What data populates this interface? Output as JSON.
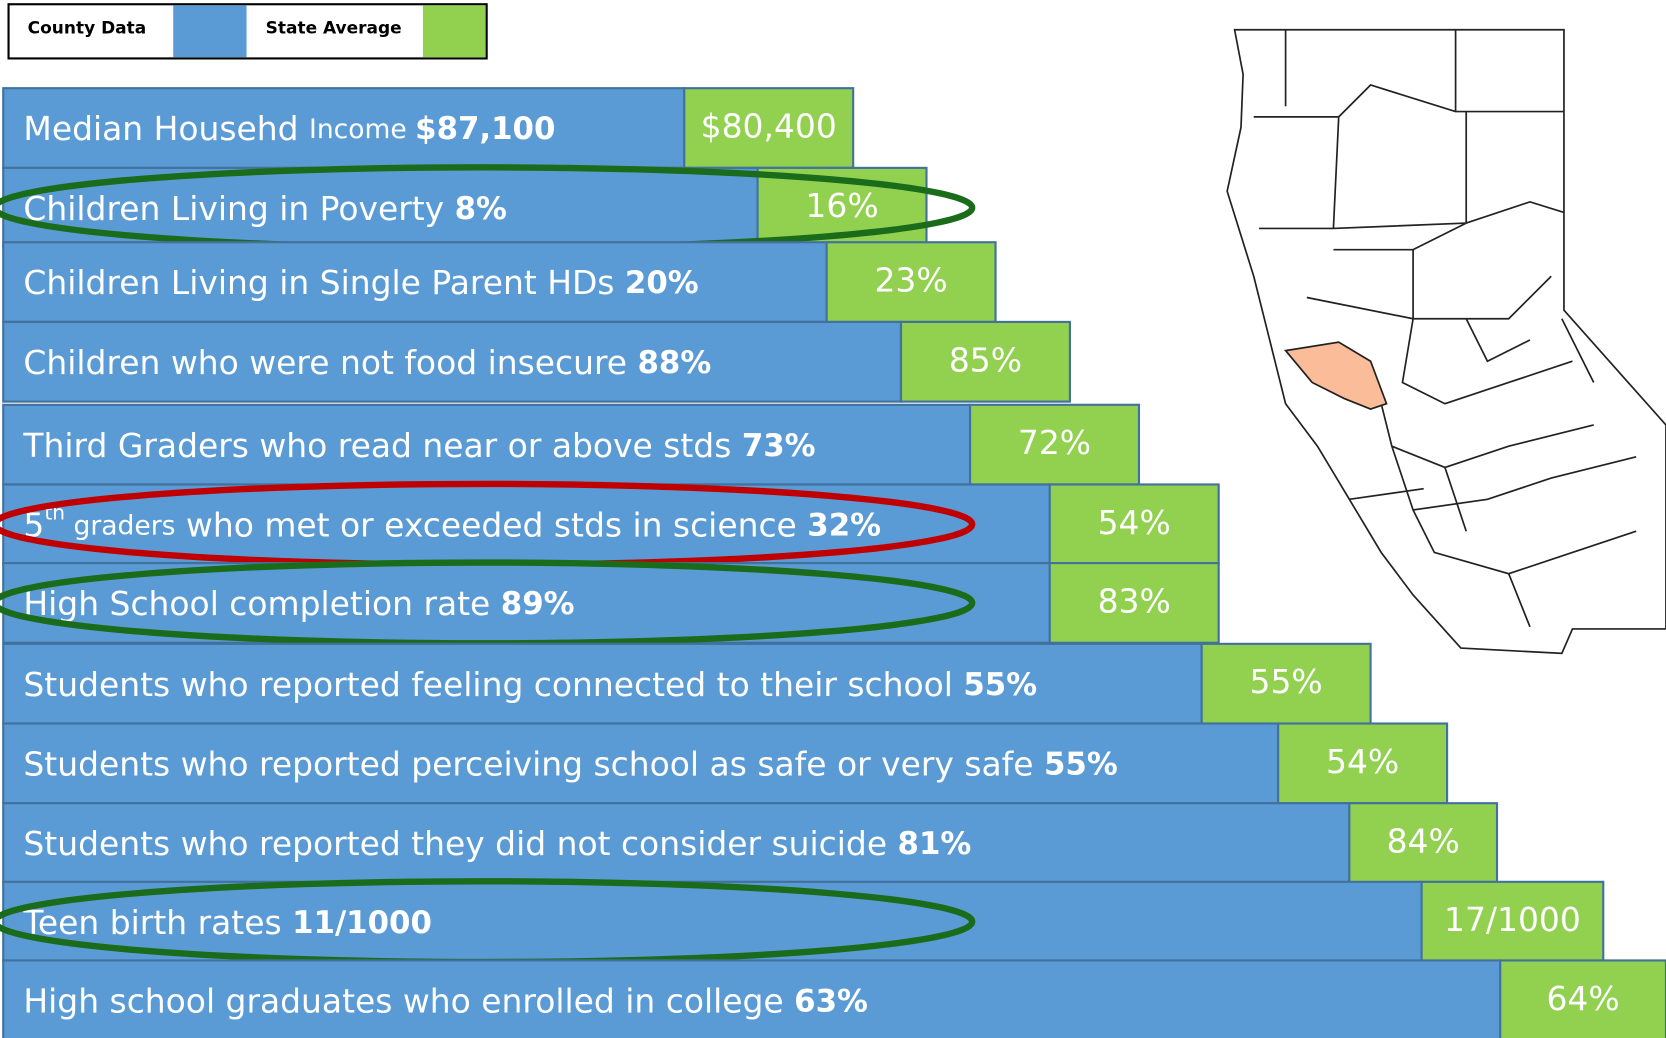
{
  "legend": {
    "county": "County Data",
    "county_color": "#5b9bd5",
    "state": "State Average",
    "state_color": "#92d050"
  },
  "rows": [
    {
      "label": [
        "Median Househd ",
        {
          "text": "Income ",
          "size": "small"
        },
        {
          "text": "$87,100",
          "size": "bold"
        }
      ],
      "state": "$80,400"
    },
    {
      "label": [
        "Children Living in Poverty ",
        {
          "text": "8%",
          "size": "bold"
        }
      ],
      "state": "16%",
      "highlight": "#1a6b1a"
    },
    {
      "label": [
        "Children Living in Single Parent HDs ",
        {
          "text": "20%",
          "size": "bold"
        }
      ],
      "state": "23%"
    },
    {
      "label": [
        "Children who were not food insecure ",
        {
          "text": "88%",
          "size": "bold"
        }
      ],
      "state": "85%"
    },
    {
      "label": [
        "Third Graders who read near or above stds  ",
        {
          "text": "73%",
          "size": "bold"
        }
      ],
      "state": "72%"
    },
    {
      "label": [
        "5",
        {
          "text": "th",
          "size": "sup"
        },
        {
          "text": " graders",
          "size": "small"
        },
        " who met or exceeded stds in science ",
        {
          "text": "32%",
          "size": "bold"
        }
      ],
      "state": "54%",
      "highlight": "#c00000"
    },
    {
      "label": [
        "High School completion rate  ",
        {
          "text": "89%",
          "size": "bold"
        }
      ],
      "state": "83%",
      "highlight": "#1a6b1a"
    },
    {
      "label": [
        "Students who reported feeling connected to their school ",
        {
          "text": "55%",
          "size": "bold"
        }
      ],
      "state": "55%"
    },
    {
      "label": [
        "Students who reported perceiving school as safe or very safe ",
        {
          "text": "55%",
          "size": "bold"
        }
      ],
      "state": "54%"
    },
    {
      "label": [
        "Students who reported they did not consider suicide ",
        {
          "text": "81%",
          "size": "bold"
        }
      ],
      "state": "84%"
    },
    {
      "label": [
        "Teen birth rates  ",
        {
          "text": "11/1000",
          "size": "bold"
        }
      ],
      "state": "17/1000",
      "highlight": "#1a6b1a"
    },
    {
      "label": [
        "High school graduates who enrolled in college ",
        {
          "text": "63%",
          "size": "bold"
        }
      ],
      "state": "64%"
    }
  ]
}
